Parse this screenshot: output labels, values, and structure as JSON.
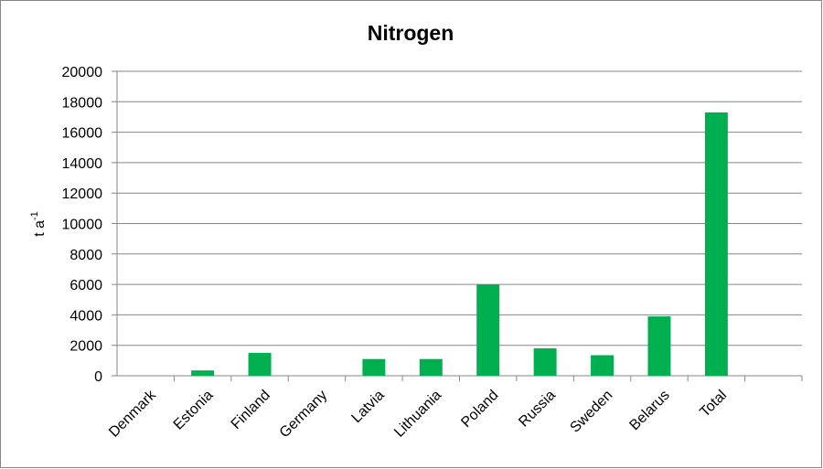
{
  "chart_data": {
    "type": "bar",
    "title": "Nitrogen",
    "y_label": {
      "base": "t a",
      "superscript": "-1"
    },
    "categories": [
      "Denmark",
      "Estonia",
      "Finland",
      "Germany",
      "Latvia",
      "Lithuania",
      "Poland",
      "Russia",
      "Sweden",
      "Belarus",
      "Total",
      null
    ],
    "values": [
      0,
      350,
      1500,
      0,
      1100,
      1100,
      6000,
      1800,
      1350,
      3900,
      17300,
      null
    ],
    "color": "#00b050",
    "ylim": [
      0,
      20000
    ],
    "yticks": [
      0,
      2000,
      4000,
      6000,
      8000,
      10000,
      12000,
      14000,
      16000,
      18000,
      20000
    ],
    "grid": true
  }
}
